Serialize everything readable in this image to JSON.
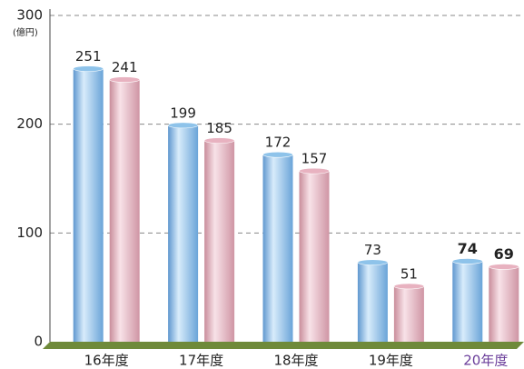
{
  "chart_data": {
    "type": "bar",
    "unit_label": "(億円)",
    "categories": [
      "16年度",
      "17年度",
      "18年度",
      "19年度",
      "20年度"
    ],
    "series": [
      {
        "color": "#8ec3ea",
        "values": [
          251,
          199,
          172,
          73,
          74
        ]
      },
      {
        "color": "#e8b2c0",
        "values": [
          241,
          185,
          157,
          51,
          69
        ]
      }
    ],
    "ylim": [
      0,
      300
    ],
    "yticks": [
      0,
      100,
      200,
      300
    ],
    "grid": true,
    "highlight_index": 4,
    "highlight_color": "#6a3d9a",
    "floor_color": "#6f8a3a"
  }
}
